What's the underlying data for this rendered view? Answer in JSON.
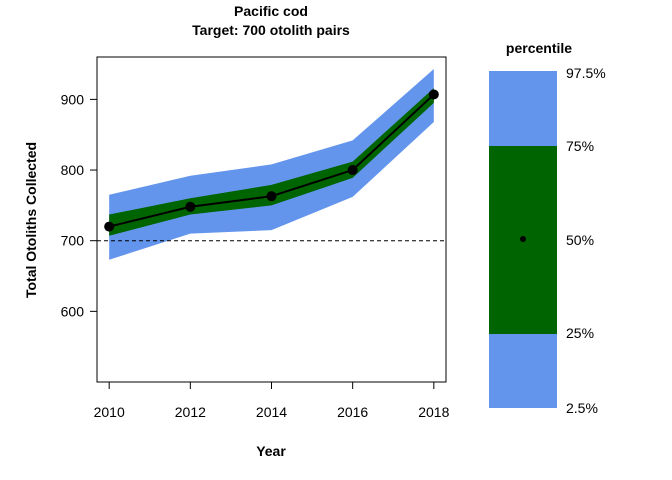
{
  "chart_data": {
    "type": "line",
    "title": "Pacific cod",
    "subtitle": "Target: 700 otolith pairs",
    "xlabel": "Year",
    "ylabel": "Total Otoliths Collected",
    "x": [
      2010,
      2012,
      2014,
      2016,
      2018
    ],
    "xlim": [
      2009.7,
      2018.3
    ],
    "ylim": [
      500,
      960
    ],
    "xticks": [
      2010,
      2012,
      2014,
      2016,
      2018
    ],
    "yticks": [
      600,
      700,
      800,
      900
    ],
    "grid": false,
    "reference_line": {
      "y": 700,
      "style": "dashed"
    },
    "series": [
      {
        "role": "median",
        "values": [
          720,
          748,
          763,
          800,
          907
        ]
      },
      {
        "role": "p2.5",
        "values": [
          673,
          710,
          715,
          762,
          868
        ]
      },
      {
        "role": "p25",
        "values": [
          707,
          737,
          750,
          789,
          895
        ]
      },
      {
        "role": "p75",
        "values": [
          737,
          760,
          779,
          812,
          916
        ]
      },
      {
        "role": "p97.5",
        "values": [
          765,
          792,
          808,
          842,
          943
        ]
      }
    ],
    "legend": {
      "title": "percentile",
      "placement": "right",
      "labels": [
        "97.5%",
        "75%",
        "50%",
        "25%",
        "2.5%"
      ]
    },
    "colors": {
      "outer_band": "#6495ED",
      "inner_band": "#006400",
      "line": "#000000",
      "reference_line": "#000000"
    }
  }
}
